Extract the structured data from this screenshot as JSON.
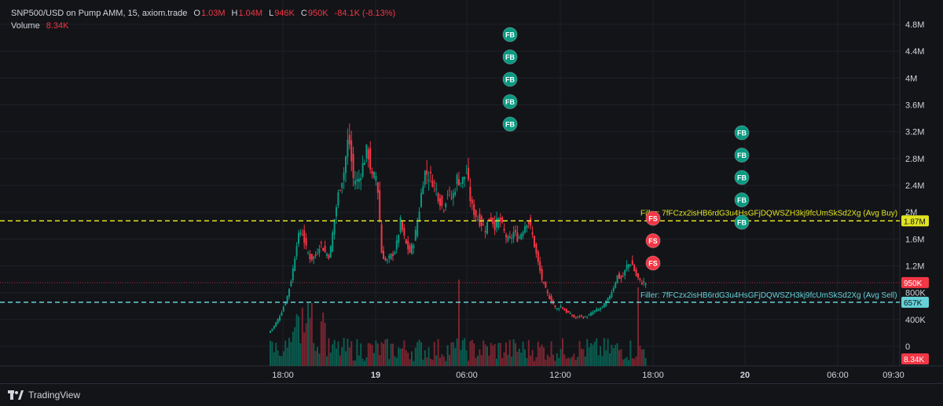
{
  "legend": {
    "title": "SNP500/USD on Pump AMM, 15, axiom.trade",
    "o_label": "O",
    "o_value": "1.03M",
    "h_label": "H",
    "h_value": "1.04M",
    "l_label": "L",
    "l_value": "946K",
    "c_label": "C",
    "c_value": "950K",
    "change": "-84.1K (-8.13%)",
    "volume_label": "Volume",
    "volume_value": "8.34K"
  },
  "colors": {
    "up": "#089981",
    "down": "#f23645",
    "avg_buy_line": "#e0e31f",
    "avg_sell_line": "#64d2d8",
    "price_line": "#f23645",
    "fb_marker": "#089981",
    "fs_marker": "#f23645"
  },
  "chart_data": {
    "type": "candlestick",
    "y_axis_ticks": [
      "4.8M",
      "4.4M",
      "4M",
      "3.6M",
      "3.2M",
      "2.8M",
      "2.4M",
      "2M",
      "1.6M",
      "1.2M",
      "800K",
      "400K",
      "0"
    ],
    "y_axis_values": [
      4800000,
      4400000,
      4000000,
      3600000,
      3200000,
      2800000,
      2400000,
      2000000,
      1600000,
      1200000,
      800000,
      400000,
      0
    ],
    "x_axis_ticks": [
      "18:00",
      "19",
      "06:00",
      "12:00",
      "18:00",
      "20",
      "06:00",
      "09:30"
    ],
    "x_axis_bold": [
      false,
      true,
      false,
      false,
      false,
      true,
      false,
      false
    ],
    "avg_buy": {
      "value": 1870000,
      "label": "1.87M",
      "text": "Filler: 7fFCzx2isHB6rdG3u4HsGFjDQWSZH3kj9fcUmSkSd2Xg (Avg Buy)"
    },
    "avg_sell": {
      "value": 657000,
      "label": "657K",
      "text": "Filler: 7fFCzx2isHB6rdG3u4HsGFjDQWSZH3kj9fcUmSkSd2Xg (Avg Sell)"
    },
    "last_price": {
      "value": 950000,
      "label": "950K"
    },
    "last_volume": {
      "label": "8.34K"
    },
    "markers": [
      {
        "label": "FB",
        "type": "buy",
        "count": 5
      },
      {
        "label": "FS",
        "type": "sell",
        "count": 3
      },
      {
        "label": "FB",
        "type": "buy",
        "count": 5
      }
    ]
  },
  "footer": {
    "brand": "TradingView"
  }
}
